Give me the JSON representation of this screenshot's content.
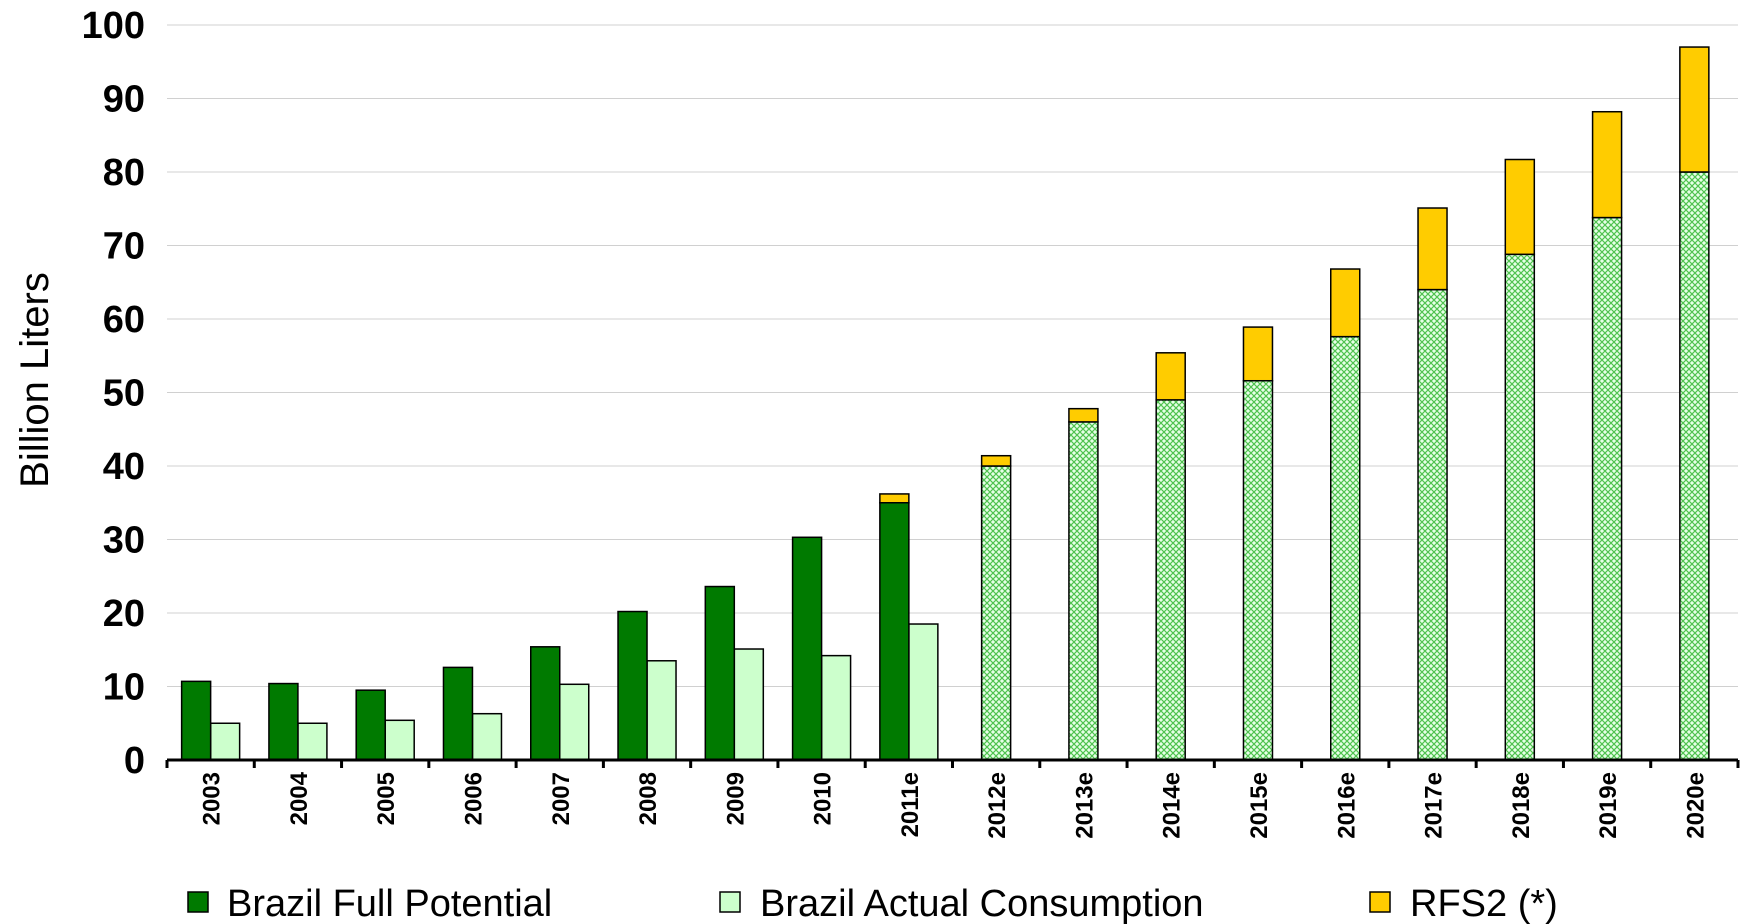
{
  "chart_data": {
    "type": "bar",
    "ylabel": "Billion Liters",
    "xlabel": "",
    "ylim": [
      0,
      100
    ],
    "yticks": [
      "0",
      "10",
      "20",
      "30",
      "40",
      "50",
      "60",
      "70",
      "80",
      "90",
      "100"
    ],
    "grid": true,
    "legend_position": "bottom",
    "categories": [
      "2003",
      "2004",
      "2005",
      "2006",
      "2007",
      "2008",
      "2009",
      "2010",
      "2011e",
      "2012e",
      "2013e",
      "2014e",
      "2015e",
      "2016e",
      "2017e",
      "2018e",
      "2019e",
      "2020e"
    ],
    "series": [
      {
        "name": "Brazil Full Potential",
        "color": "#007A00",
        "pattern": "solid",
        "values": [
          10.7,
          10.4,
          9.5,
          12.6,
          15.4,
          20.2,
          23.6,
          30.3,
          35.0,
          40.0,
          46.0,
          49.0,
          51.6,
          57.6,
          64.0,
          68.8,
          73.8,
          80.0
        ]
      },
      {
        "name": "Brazil Actual Consumption",
        "color": "#CCFFCC",
        "pattern": "solid",
        "values": [
          5.0,
          5.0,
          5.4,
          6.3,
          10.3,
          13.5,
          15.1,
          14.2,
          18.5,
          null,
          null,
          null,
          null,
          null,
          null,
          null,
          null,
          null
        ]
      },
      {
        "name": "RFS2 (*)",
        "color": "#FFCC00",
        "pattern": "solid",
        "stack_on": "Brazil Full Potential",
        "values": [
          null,
          null,
          null,
          null,
          null,
          null,
          null,
          null,
          1.2,
          1.4,
          1.8,
          6.4,
          7.3,
          9.2,
          11.1,
          12.9,
          14.4,
          17.0
        ]
      }
    ],
    "hatched_from_category": "2012e",
    "hatch_color": "#99E699"
  }
}
